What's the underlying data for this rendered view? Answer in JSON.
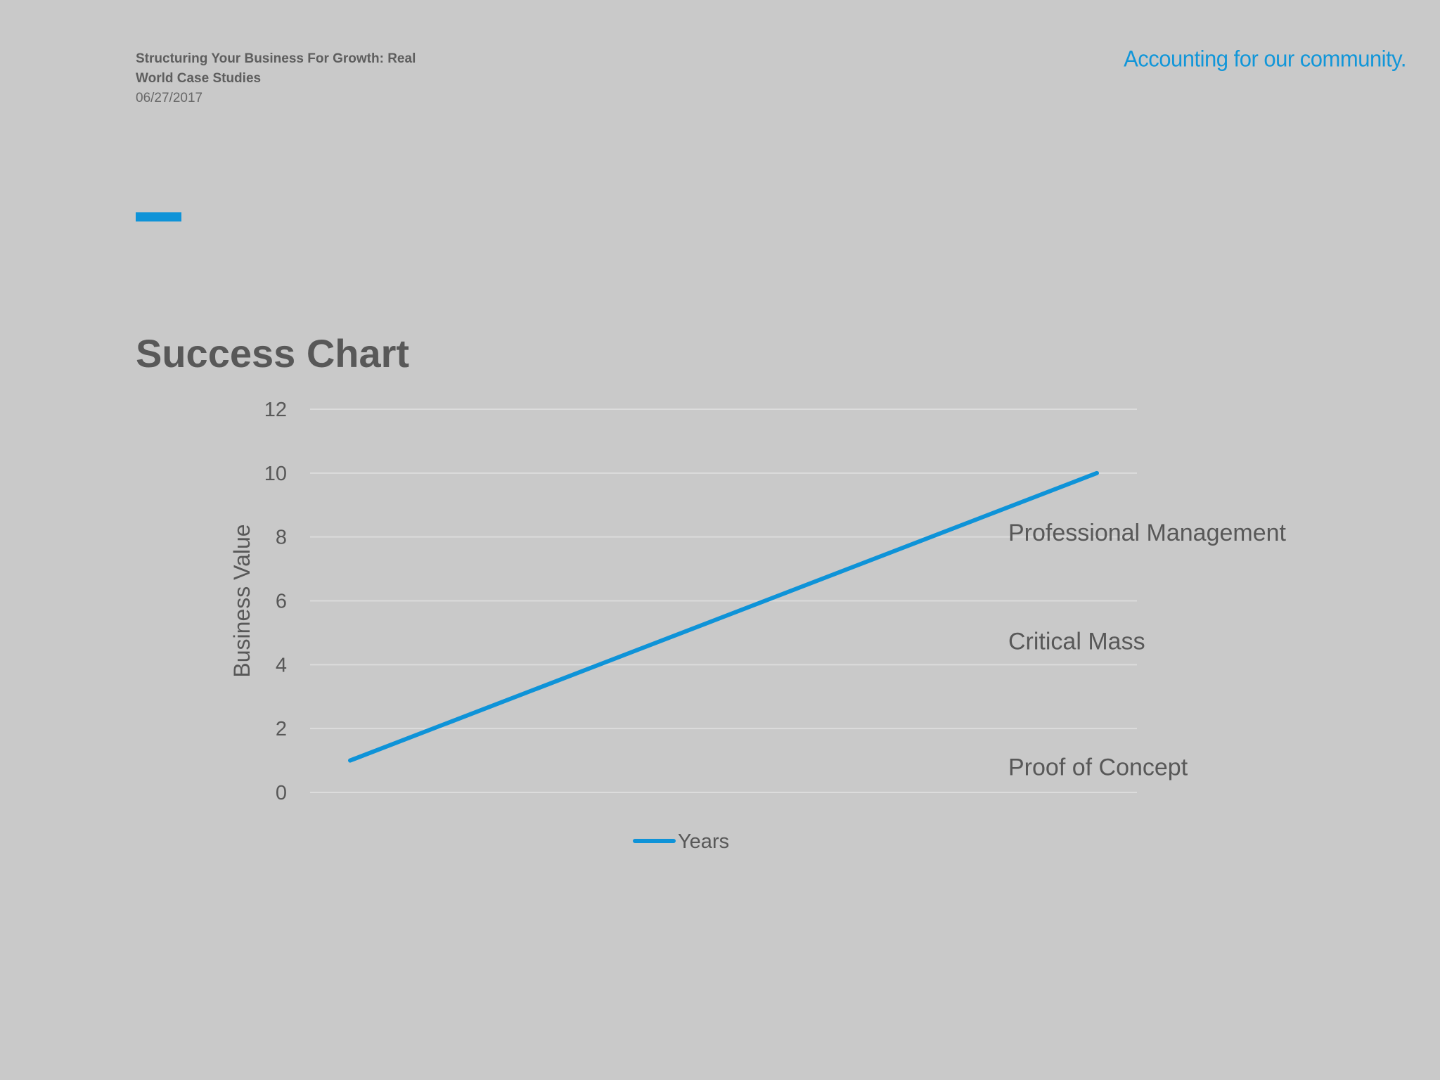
{
  "header": {
    "deck_title": "Structuring Your Business For Growth: Real World Case Studies",
    "date": "06/27/2017",
    "tagline": "Accounting for our community."
  },
  "slide": {
    "title": "Success Chart"
  },
  "colors": {
    "accent": "#0e93d8",
    "background": "#c9c9c9",
    "text": "#585858",
    "gridline": "#dcdcdc"
  },
  "chart_data": {
    "type": "line",
    "title": "",
    "xlabel": "",
    "ylabel": "Business Value",
    "ylim": [
      0,
      12
    ],
    "yticks": [
      0,
      2,
      4,
      6,
      8,
      10,
      12
    ],
    "grid": true,
    "legend_position": "bottom",
    "series": [
      {
        "name": "Years",
        "x": [
          0,
          1
        ],
        "values": [
          1,
          10
        ]
      }
    ],
    "annotations": [
      {
        "text": "Professional Management",
        "y": 8.15
      },
      {
        "text": "Critical Mass",
        "y": 4.75
      },
      {
        "text": "Proof of Concept",
        "y": 0.8
      }
    ]
  }
}
